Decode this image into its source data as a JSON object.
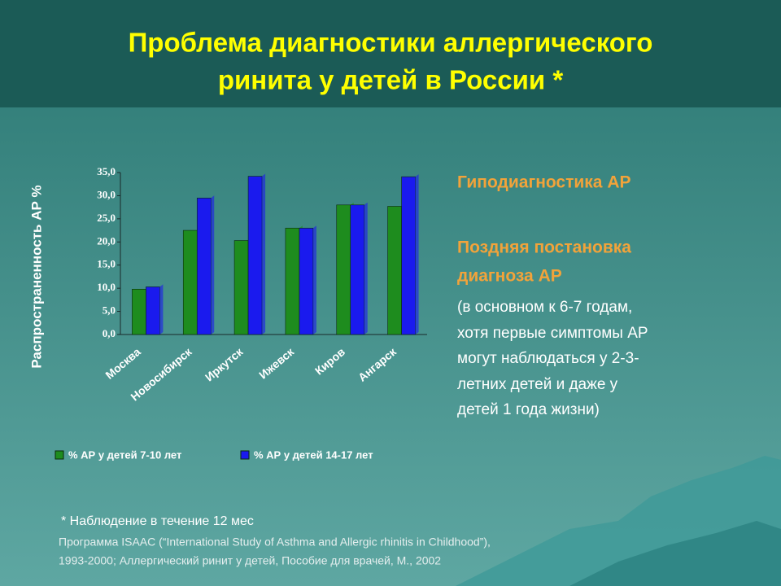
{
  "title": [
    "Проблема диагностики аллергического",
    "ринита у детей в России *"
  ],
  "chart_data": {
    "type": "bar",
    "y_label": "Распространенность АР %",
    "categories": [
      "Москва",
      "Новосибирск",
      "Иркутск",
      "Ижевск",
      "Киров",
      "Ангарск"
    ],
    "series": [
      {
        "name": "% АР у детей 7-10 лет",
        "color": "#1e8c1e",
        "values": [
          9.8,
          22.5,
          20.3,
          23.0,
          28.0,
          27.7
        ]
      },
      {
        "name": "% АР у детей 14-17 лет",
        "color": "#1a1aee",
        "values": [
          10.3,
          29.5,
          34.2,
          23.0,
          28.0,
          34.1
        ]
      }
    ],
    "ylim": [
      0,
      35
    ],
    "yticks": [
      {
        "value": 0,
        "label": "0,0"
      },
      {
        "value": 5,
        "label": "5,0"
      },
      {
        "value": 10,
        "label": "10,0"
      },
      {
        "value": 15,
        "label": "15,0"
      },
      {
        "value": 20,
        "label": "20,0"
      },
      {
        "value": 25,
        "label": "25,0"
      },
      {
        "value": 30,
        "label": "30,0"
      },
      {
        "value": 35,
        "label": "35,0"
      }
    ]
  },
  "side_text": {
    "headings": [
      "Гиподиагностика АР",
      "Поздняя постановка",
      "диагноза АР"
    ],
    "lines": [
      "(в основном к 6-7 годам,",
      "хотя первые симптомы АР",
      "могут наблюдаться у 2-3-",
      "летних детей и даже у",
      "детей 1 года жизни)"
    ]
  },
  "footnote": [
    "* Наблюдение в течение 12 мес",
    "Программа ISAAC (“International Study of Asthma and Allergic rhinitis in Childhood”),",
    "1993-2000; Аллергический ринит у детей, Пособие для врачей, М., 2002"
  ]
}
